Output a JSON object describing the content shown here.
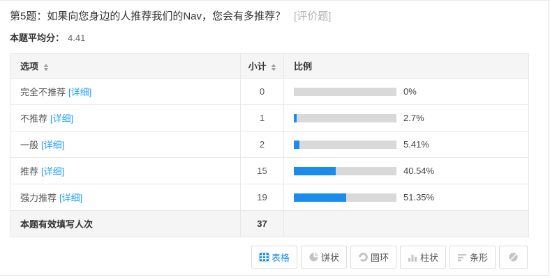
{
  "page": {
    "title": "第5题：如果向您身边的人推荐我们的Nav，您会有多推荐？",
    "title_tag": "[评价题]",
    "average_label": "本题平均分：",
    "average_value": "4.41"
  },
  "table": {
    "headers": {
      "option": "选项",
      "count": "小计",
      "ratio": "比例"
    },
    "rows": [
      {
        "label": "完全不推荐",
        "detail": "[详细]",
        "count": "0",
        "percent_text": "0%",
        "percent": 0
      },
      {
        "label": "不推荐",
        "detail": "[详细]",
        "count": "1",
        "percent_text": "2.7%",
        "percent": 2.7
      },
      {
        "label": "一般",
        "detail": "[详细]",
        "count": "2",
        "percent_text": "5.41%",
        "percent": 5.41
      },
      {
        "label": "推荐",
        "detail": "[详细]",
        "count": "15",
        "percent_text": "40.54%",
        "percent": 40.54
      },
      {
        "label": "强力推荐",
        "detail": "[详细]",
        "count": "19",
        "percent_text": "51.35%",
        "percent": 51.35
      }
    ],
    "footer": {
      "label": "本题有效填写人次",
      "count": "37"
    }
  },
  "toolbar": {
    "buttons": [
      {
        "label": "表格",
        "icon": "table-icon"
      },
      {
        "label": "饼状",
        "icon": "pie-chart-icon"
      },
      {
        "label": "圆环",
        "icon": "donut-chart-icon"
      },
      {
        "label": "柱状",
        "icon": "column-chart-icon"
      },
      {
        "label": "条形",
        "icon": "bar-chart-icon"
      },
      {
        "label": "",
        "icon": "disabled-icon"
      }
    ]
  },
  "colors": {
    "accent_blue": "#1a8cee",
    "link_blue": "#1e9fff",
    "bar_track_gray": "#d9d9d9",
    "icon_gray": "#c4c4c4",
    "header_bg": "#f5f5f5"
  }
}
